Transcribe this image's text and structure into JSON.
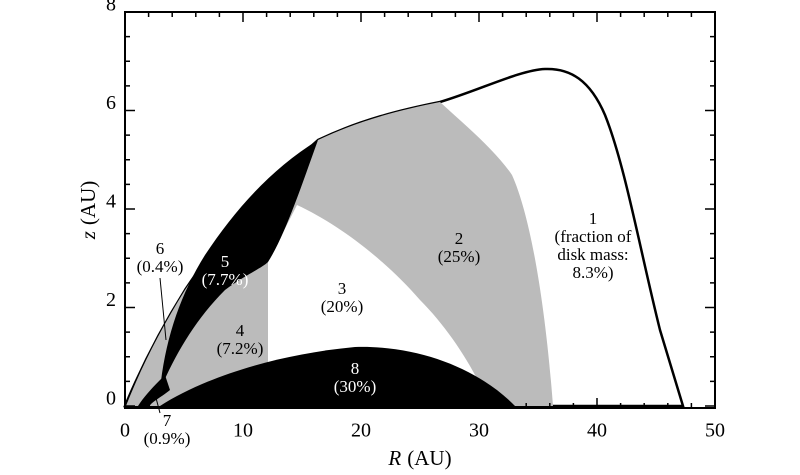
{
  "chart_data": {
    "type": "region",
    "xlabel": {
      "symbol": "R",
      "unit": "(AU)"
    },
    "ylabel": {
      "symbol": "z",
      "unit": "(AU)"
    },
    "xlim": [
      0,
      50
    ],
    "xticks": [
      0,
      10,
      20,
      30,
      40,
      50
    ],
    "ylim": [
      0,
      8
    ],
    "yticks": [
      0,
      2,
      4,
      6,
      8
    ],
    "regions": [
      {
        "name": "1",
        "lines": [
          "(fraction of",
          "disk mass:",
          "8.3%)"
        ]
      },
      {
        "name": "2",
        "lines": [
          "(25%)"
        ]
      },
      {
        "name": "3",
        "lines": [
          "(20%)"
        ]
      },
      {
        "name": "4",
        "lines": [
          "(7.2%)"
        ]
      },
      {
        "name": "5",
        "lines": [
          "(7.7%)"
        ]
      },
      {
        "name": "6",
        "lines": [
          "(0.4%)"
        ]
      },
      {
        "name": "7",
        "lines": [
          "(0.9%)"
        ]
      },
      {
        "name": "8",
        "lines": [
          "(30%)"
        ]
      }
    ]
  }
}
